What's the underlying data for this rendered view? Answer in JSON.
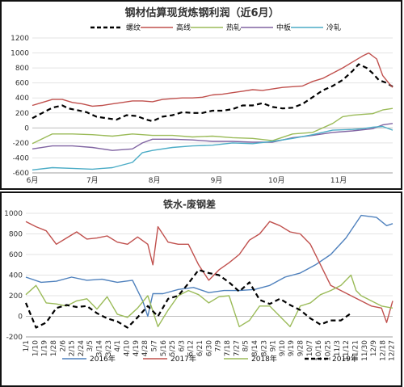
{
  "chart_data": [
    {
      "type": "line",
      "title": "钢材估算现货炼钢利润（近6月）",
      "xlabel": "",
      "ylabel": "",
      "ylim": [
        -600,
        1200
      ],
      "yticks": [
        1200,
        1000,
        800,
        600,
        400,
        200,
        0,
        -200,
        -400,
        -600
      ],
      "xlim": [
        0,
        180
      ],
      "xticks": [
        {
          "x": 0,
          "label": "6月"
        },
        {
          "x": 30,
          "label": "7月"
        },
        {
          "x": 61,
          "label": "8月"
        },
        {
          "x": 92,
          "label": "9月"
        },
        {
          "x": 122,
          "label": "10月"
        },
        {
          "x": 153,
          "label": "11月"
        }
      ],
      "grid": true,
      "legend_position": "top",
      "series": [
        {
          "name": "螺纹",
          "color": "#000000",
          "dash": true,
          "x": [
            0,
            5,
            10,
            15,
            18,
            22,
            27,
            32,
            37,
            42,
            47,
            52,
            57,
            60,
            65,
            70,
            75,
            80,
            85,
            90,
            95,
            100,
            105,
            110,
            115,
            120,
            125,
            130,
            135,
            140,
            145,
            150,
            155,
            160,
            163,
            167,
            170,
            173,
            177,
            180
          ],
          "y": [
            130,
            200,
            270,
            300,
            260,
            240,
            210,
            150,
            130,
            110,
            170,
            160,
            110,
            90,
            150,
            170,
            210,
            200,
            200,
            230,
            230,
            250,
            300,
            300,
            330,
            280,
            260,
            270,
            320,
            410,
            500,
            560,
            640,
            760,
            850,
            800,
            730,
            640,
            600,
            550
          ]
        },
        {
          "name": "高线",
          "color": "#c0504d",
          "dash": false,
          "x": [
            0,
            5,
            10,
            15,
            20,
            25,
            30,
            35,
            40,
            45,
            50,
            55,
            60,
            65,
            70,
            75,
            80,
            85,
            90,
            95,
            100,
            105,
            110,
            115,
            120,
            125,
            130,
            135,
            140,
            145,
            150,
            155,
            160,
            165,
            168,
            172,
            175,
            178,
            180
          ],
          "y": [
            300,
            340,
            380,
            380,
            340,
            320,
            290,
            300,
            320,
            340,
            360,
            360,
            350,
            380,
            390,
            400,
            400,
            410,
            440,
            450,
            470,
            490,
            510,
            500,
            520,
            540,
            550,
            560,
            620,
            660,
            730,
            800,
            880,
            960,
            1000,
            920,
            700,
            600,
            540
          ]
        },
        {
          "name": "热轧",
          "color": "#9bbb59",
          "dash": false,
          "x": [
            0,
            10,
            20,
            30,
            40,
            50,
            60,
            70,
            80,
            90,
            100,
            110,
            120,
            130,
            140,
            150,
            155,
            160,
            165,
            170,
            175,
            180
          ],
          "y": [
            -210,
            -80,
            -80,
            -90,
            -110,
            -80,
            -100,
            -100,
            -120,
            -110,
            -130,
            -140,
            -170,
            -80,
            -60,
            60,
            150,
            170,
            180,
            190,
            240,
            260
          ]
        },
        {
          "name": "中板",
          "color": "#8064a2",
          "dash": false,
          "x": [
            0,
            10,
            20,
            30,
            40,
            50,
            55,
            60,
            70,
            80,
            90,
            100,
            110,
            120,
            130,
            140,
            150,
            160,
            170,
            175,
            180
          ],
          "y": [
            -280,
            -240,
            -240,
            -260,
            -300,
            -280,
            -200,
            -150,
            -150,
            -160,
            -180,
            -180,
            -190,
            -190,
            -130,
            -100,
            -60,
            -40,
            -10,
            40,
            60
          ]
        },
        {
          "name": "冷轧",
          "color": "#4bacc6",
          "dash": false,
          "x": [
            0,
            10,
            20,
            30,
            40,
            50,
            55,
            60,
            70,
            80,
            90,
            100,
            110,
            120,
            130,
            140,
            150,
            160,
            165,
            170,
            175,
            180
          ],
          "y": [
            -560,
            -530,
            -540,
            -550,
            -530,
            -460,
            -330,
            -300,
            -260,
            -240,
            -230,
            -200,
            -210,
            -180,
            -140,
            -90,
            -30,
            -20,
            -10,
            10,
            20,
            -30
          ]
        }
      ]
    },
    {
      "type": "line",
      "title": "铁水-废钢差",
      "xlabel": "",
      "ylabel": "",
      "ylim": [
        -200,
        1000
      ],
      "yticks": [
        1000,
        800,
        600,
        400,
        200,
        0,
        -200
      ],
      "xlim": [
        0,
        361
      ],
      "xticks": [
        {
          "x": 0,
          "label": "1/1"
        },
        {
          "x": 9,
          "label": "1/10"
        },
        {
          "x": 18,
          "label": "1/19"
        },
        {
          "x": 27,
          "label": "1/28"
        },
        {
          "x": 36,
          "label": "2/6"
        },
        {
          "x": 45,
          "label": "2/15"
        },
        {
          "x": 54,
          "label": "2/24"
        },
        {
          "x": 63,
          "label": "3/5"
        },
        {
          "x": 72,
          "label": "3/14"
        },
        {
          "x": 81,
          "label": "3/23"
        },
        {
          "x": 90,
          "label": "4/1"
        },
        {
          "x": 99,
          "label": "4/10"
        },
        {
          "x": 108,
          "label": "4/19"
        },
        {
          "x": 117,
          "label": "4/28"
        },
        {
          "x": 126,
          "label": "5/7"
        },
        {
          "x": 135,
          "label": "5/16"
        },
        {
          "x": 144,
          "label": "5/25"
        },
        {
          "x": 153,
          "label": "6/3"
        },
        {
          "x": 162,
          "label": "6/12"
        },
        {
          "x": 171,
          "label": "6/21"
        },
        {
          "x": 180,
          "label": "6/30"
        },
        {
          "x": 189,
          "label": "7/9"
        },
        {
          "x": 198,
          "label": "7/18"
        },
        {
          "x": 207,
          "label": "7/27"
        },
        {
          "x": 216,
          "label": "8/5"
        },
        {
          "x": 225,
          "label": "8/14"
        },
        {
          "x": 234,
          "label": "8/23"
        },
        {
          "x": 243,
          "label": "9/1"
        },
        {
          "x": 252,
          "label": "9/10"
        },
        {
          "x": 261,
          "label": "9/19"
        },
        {
          "x": 270,
          "label": "9/28"
        },
        {
          "x": 279,
          "label": "10/7"
        },
        {
          "x": 288,
          "label": "10/16"
        },
        {
          "x": 297,
          "label": "10/25"
        },
        {
          "x": 306,
          "label": "11/3"
        },
        {
          "x": 315,
          "label": "11/12"
        },
        {
          "x": 324,
          "label": "11/21"
        },
        {
          "x": 333,
          "label": "11/30"
        },
        {
          "x": 342,
          "label": "12/9"
        },
        {
          "x": 351,
          "label": "12/18"
        },
        {
          "x": 360,
          "label": "12/27"
        }
      ],
      "grid": true,
      "legend_position": "bottom",
      "series": [
        {
          "name": "2016年",
          "color": "#4f81bd",
          "dash": false,
          "x": [
            0,
            15,
            30,
            45,
            60,
            75,
            90,
            105,
            115,
            120,
            125,
            135,
            150,
            165,
            180,
            195,
            210,
            225,
            240,
            255,
            270,
            285,
            300,
            315,
            330,
            345,
            355,
            361
          ],
          "y": [
            380,
            330,
            340,
            380,
            350,
            360,
            330,
            350,
            150,
            0,
            220,
            220,
            260,
            280,
            230,
            250,
            250,
            260,
            300,
            380,
            420,
            500,
            600,
            760,
            980,
            960,
            880,
            900
          ]
        },
        {
          "name": "2017年",
          "color": "#c0504d",
          "dash": false,
          "x": [
            0,
            10,
            20,
            30,
            40,
            50,
            60,
            70,
            80,
            90,
            100,
            110,
            120,
            125,
            130,
            140,
            150,
            160,
            170,
            180,
            190,
            200,
            210,
            220,
            230,
            240,
            250,
            260,
            270,
            280,
            290,
            300,
            310,
            320,
            330,
            340,
            350,
            355,
            361
          ],
          "y": [
            920,
            870,
            830,
            700,
            760,
            820,
            750,
            760,
            780,
            720,
            700,
            770,
            700,
            500,
            870,
            720,
            700,
            700,
            500,
            350,
            450,
            520,
            600,
            740,
            800,
            920,
            880,
            820,
            800,
            700,
            500,
            300,
            250,
            200,
            150,
            100,
            80,
            -60,
            150
          ]
        },
        {
          "name": "2018年",
          "color": "#9bbb59",
          "dash": false,
          "x": [
            0,
            10,
            20,
            30,
            40,
            50,
            60,
            70,
            80,
            90,
            100,
            110,
            120,
            130,
            140,
            150,
            160,
            170,
            180,
            190,
            200,
            210,
            220,
            230,
            240,
            250,
            260,
            270,
            280,
            290,
            300,
            310,
            320,
            325,
            330,
            340,
            350,
            361
          ],
          "y": [
            210,
            300,
            130,
            120,
            100,
            150,
            170,
            70,
            190,
            20,
            -10,
            80,
            200,
            -100,
            60,
            200,
            250,
            210,
            130,
            190,
            200,
            -100,
            -40,
            100,
            100,
            0,
            -100,
            100,
            130,
            210,
            250,
            300,
            400,
            250,
            200,
            150,
            100,
            80
          ]
        },
        {
          "name": "2019年",
          "color": "#000000",
          "dash": true,
          "x": [
            0,
            10,
            20,
            30,
            40,
            50,
            60,
            70,
            80,
            90,
            100,
            110,
            120,
            130,
            140,
            150,
            160,
            170,
            180,
            190,
            200,
            210,
            220,
            230,
            240,
            250,
            260,
            270,
            280,
            290,
            300,
            310,
            320
          ],
          "y": [
            130,
            -110,
            -60,
            80,
            110,
            90,
            100,
            30,
            -20,
            -50,
            -110,
            -10,
            100,
            0,
            170,
            200,
            320,
            450,
            420,
            400,
            330,
            240,
            330,
            160,
            120,
            170,
            110,
            60,
            -20,
            -80,
            -40,
            -40,
            30
          ]
        }
      ]
    }
  ]
}
